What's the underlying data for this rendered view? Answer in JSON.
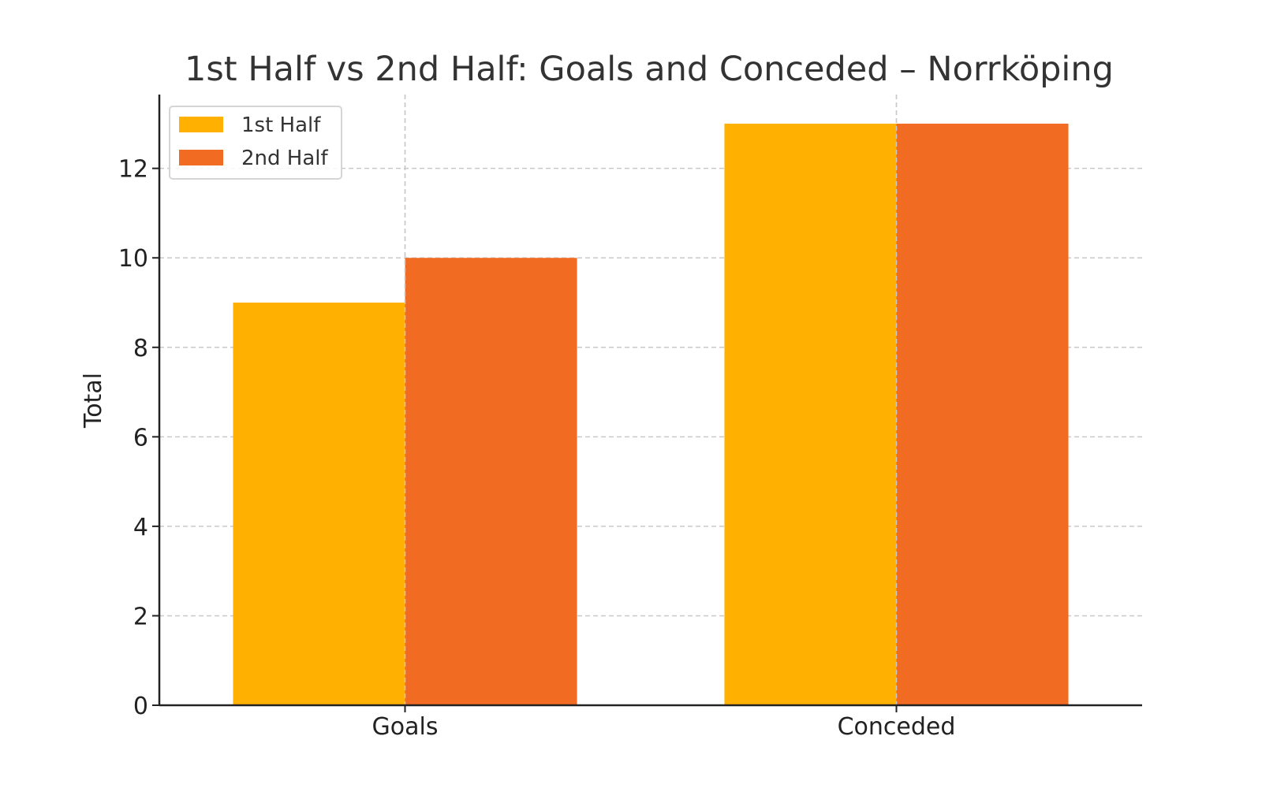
{
  "chart_data": {
    "type": "bar",
    "title": "1st Half vs 2nd Half: Goals and Conceded – Norrköping",
    "xlabel": "",
    "ylabel": "Total",
    "categories": [
      "Goals",
      "Conceded"
    ],
    "series": [
      {
        "name": "1st Half",
        "values": [
          9,
          13
        ],
        "color": "#FFB000"
      },
      {
        "name": "2nd Half",
        "values": [
          10,
          13
        ],
        "color": "#F26B22"
      }
    ],
    "ylim": [
      0,
      13.65
    ],
    "yticks": [
      0,
      2,
      4,
      6,
      8,
      10,
      12
    ],
    "grid": true,
    "legend_position": "top-left"
  }
}
